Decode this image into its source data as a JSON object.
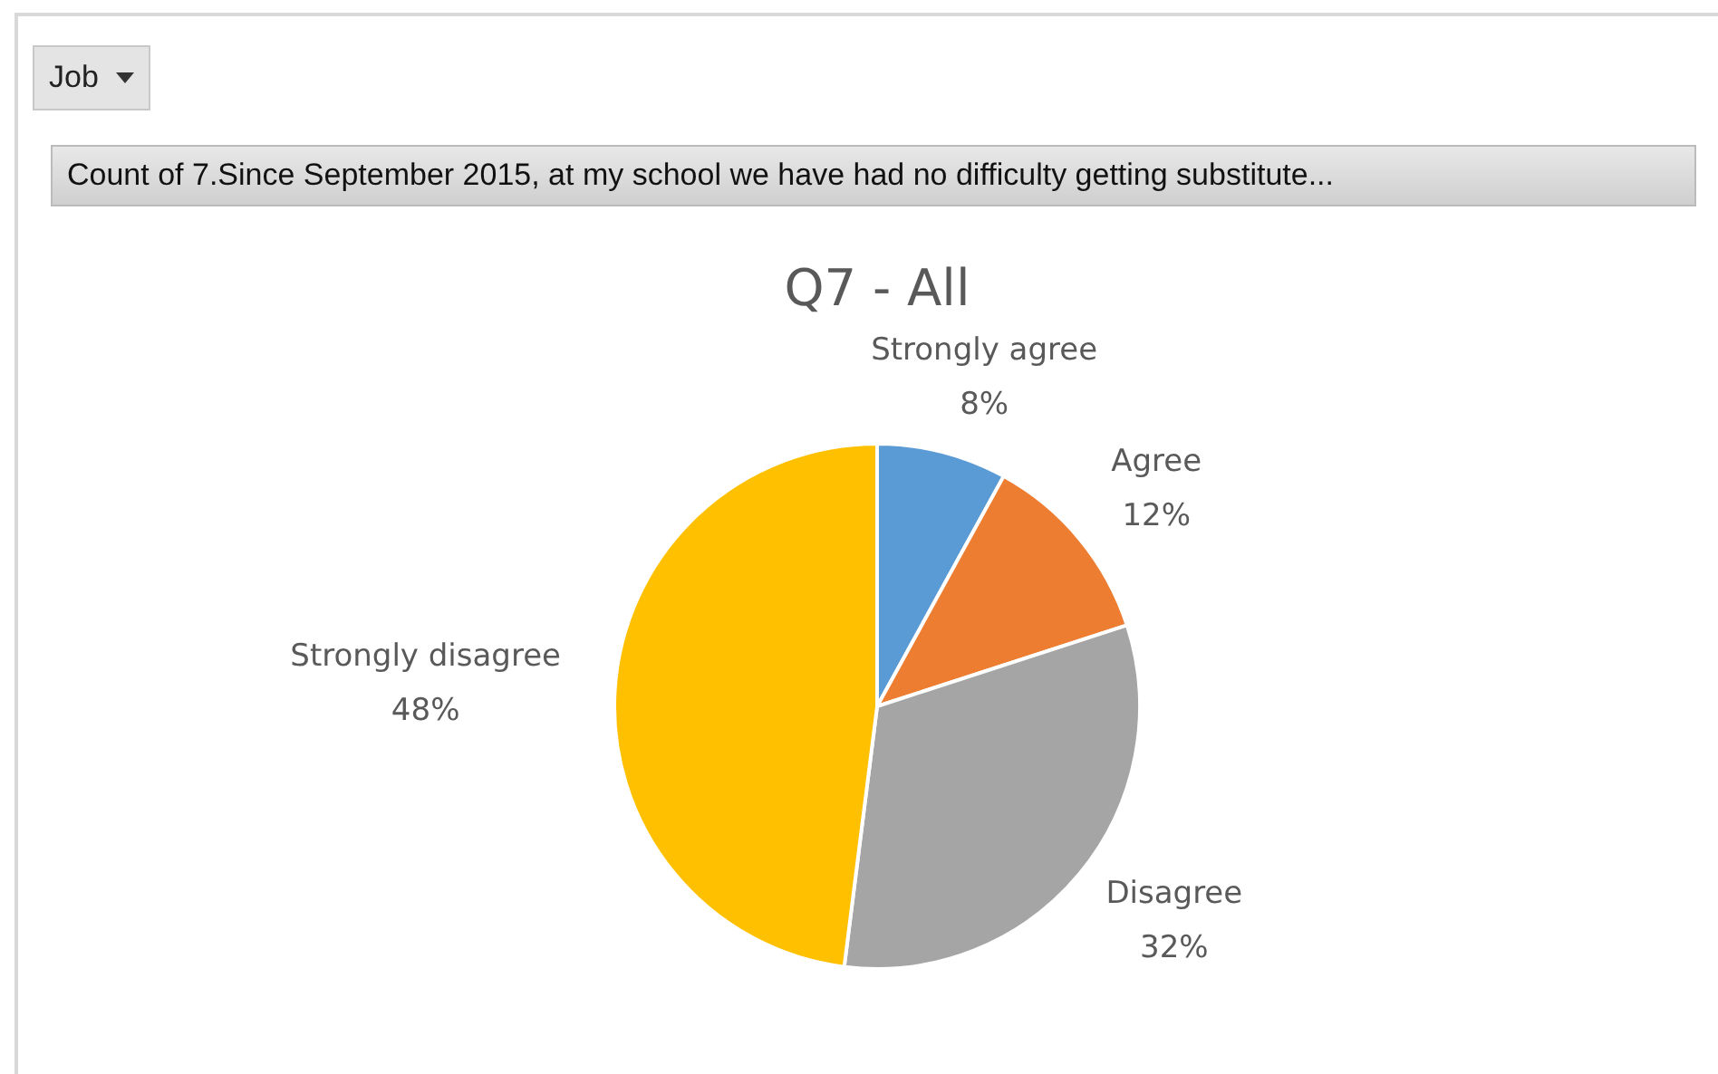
{
  "chart_data": {
    "type": "pie",
    "title": "Q7 - All",
    "categories": [
      "Strongly agree",
      "Agree",
      "Disagree",
      "Strongly disagree"
    ],
    "values": [
      8,
      12,
      32,
      48
    ],
    "colors": [
      "#5b9bd5",
      "#ed7d31",
      "#a5a5a5",
      "#ffc000"
    ],
    "value_labels": [
      "8%",
      "12%",
      "32%",
      "48%"
    ],
    "legend": false,
    "annotations": [
      "Job",
      "Count of 7.Since September 2015, at my school we have had no difficulty getting substitute..."
    ]
  }
}
